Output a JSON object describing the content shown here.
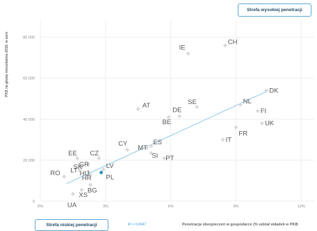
{
  "chart_data": {
    "type": "scatter",
    "xlabel": "Penetracja obezpieczeń w gospodarce (% udział składek w PKB",
    "ylabel": "PKB na głowę mieszkańca 2019, w euro",
    "x_ticks": [
      "0%",
      "3%",
      "6%",
      "9%",
      "12%"
    ],
    "x_tick_values": [
      0,
      3,
      6,
      9,
      12
    ],
    "y_ticks": [
      "0",
      "20 000",
      "40 000",
      "60 000",
      "80 000"
    ],
    "y_tick_values": [
      0,
      20000,
      40000,
      60000,
      80000
    ],
    "xlim": [
      0,
      12.6
    ],
    "ylim": [
      0,
      88000
    ],
    "grid": true,
    "r2_label": "R² = 0,6647",
    "trendline": {
      "x": [
        1.2,
        10.5
      ],
      "y": [
        8500,
        54000
      ]
    },
    "points": [
      {
        "label": "CH",
        "x": 8.5,
        "y": 76000
      },
      {
        "label": "IE",
        "x": 6.8,
        "y": 72000
      },
      {
        "label": "DK",
        "x": 10.4,
        "y": 54000
      },
      {
        "label": "NL",
        "x": 9.2,
        "y": 47000
      },
      {
        "label": "SE",
        "x": 7.2,
        "y": 46000
      },
      {
        "label": "FI",
        "x": 10.0,
        "y": 44000
      },
      {
        "label": "AT",
        "x": 4.5,
        "y": 45000
      },
      {
        "label": "DE",
        "x": 6.4,
        "y": 41500
      },
      {
        "label": "BE",
        "x": 5.9,
        "y": 41000
      },
      {
        "label": "UK",
        "x": 10.2,
        "y": 38000
      },
      {
        "label": "FR",
        "x": 9.0,
        "y": 36000
      },
      {
        "label": "IT",
        "x": 8.4,
        "y": 30000
      },
      {
        "label": "CY",
        "x": 4.0,
        "y": 25000
      },
      {
        "label": "ES",
        "x": 5.1,
        "y": 27000
      },
      {
        "label": "MT",
        "x": 4.9,
        "y": 26000
      },
      {
        "label": "SI",
        "x": 5.1,
        "y": 23500
      },
      {
        "label": "PT",
        "x": 5.7,
        "y": 21000
      },
      {
        "label": "EE",
        "x": 1.7,
        "y": 21000
      },
      {
        "label": "CZ",
        "x": 2.7,
        "y": 21000
      },
      {
        "label": "GR",
        "x": 2.2,
        "y": 18000
      },
      {
        "label": "SK",
        "x": 1.9,
        "y": 16500
      },
      {
        "label": "LT",
        "x": 1.8,
        "y": 15000
      },
      {
        "label": "HU",
        "x": 2.2,
        "y": 14500
      },
      {
        "label": "LV",
        "x": 2.9,
        "y": 15500
      },
      {
        "label": "PL",
        "x": 2.8,
        "y": 14000,
        "highlight": true
      },
      {
        "label": "RO",
        "x": 1.1,
        "y": 12000
      },
      {
        "label": "HR",
        "x": 2.3,
        "y": 13000
      },
      {
        "label": "BG",
        "x": 2.3,
        "y": 8000
      },
      {
        "label": "XS",
        "x": 1.9,
        "y": 5500
      },
      {
        "label": "UA",
        "x": 1.5,
        "y": 3500
      }
    ],
    "colors": {
      "point": "#d9d9d9",
      "highlight": "#1f8fb8",
      "trend": "#9fd1ee",
      "label": "#555555",
      "tick": "#8a8a8a",
      "grid": "#eeeeee"
    }
  },
  "ui": {
    "high_button_label": "Strefa wysokiej penetracji",
    "low_button_label": "Strefa niskiej penetracji"
  }
}
